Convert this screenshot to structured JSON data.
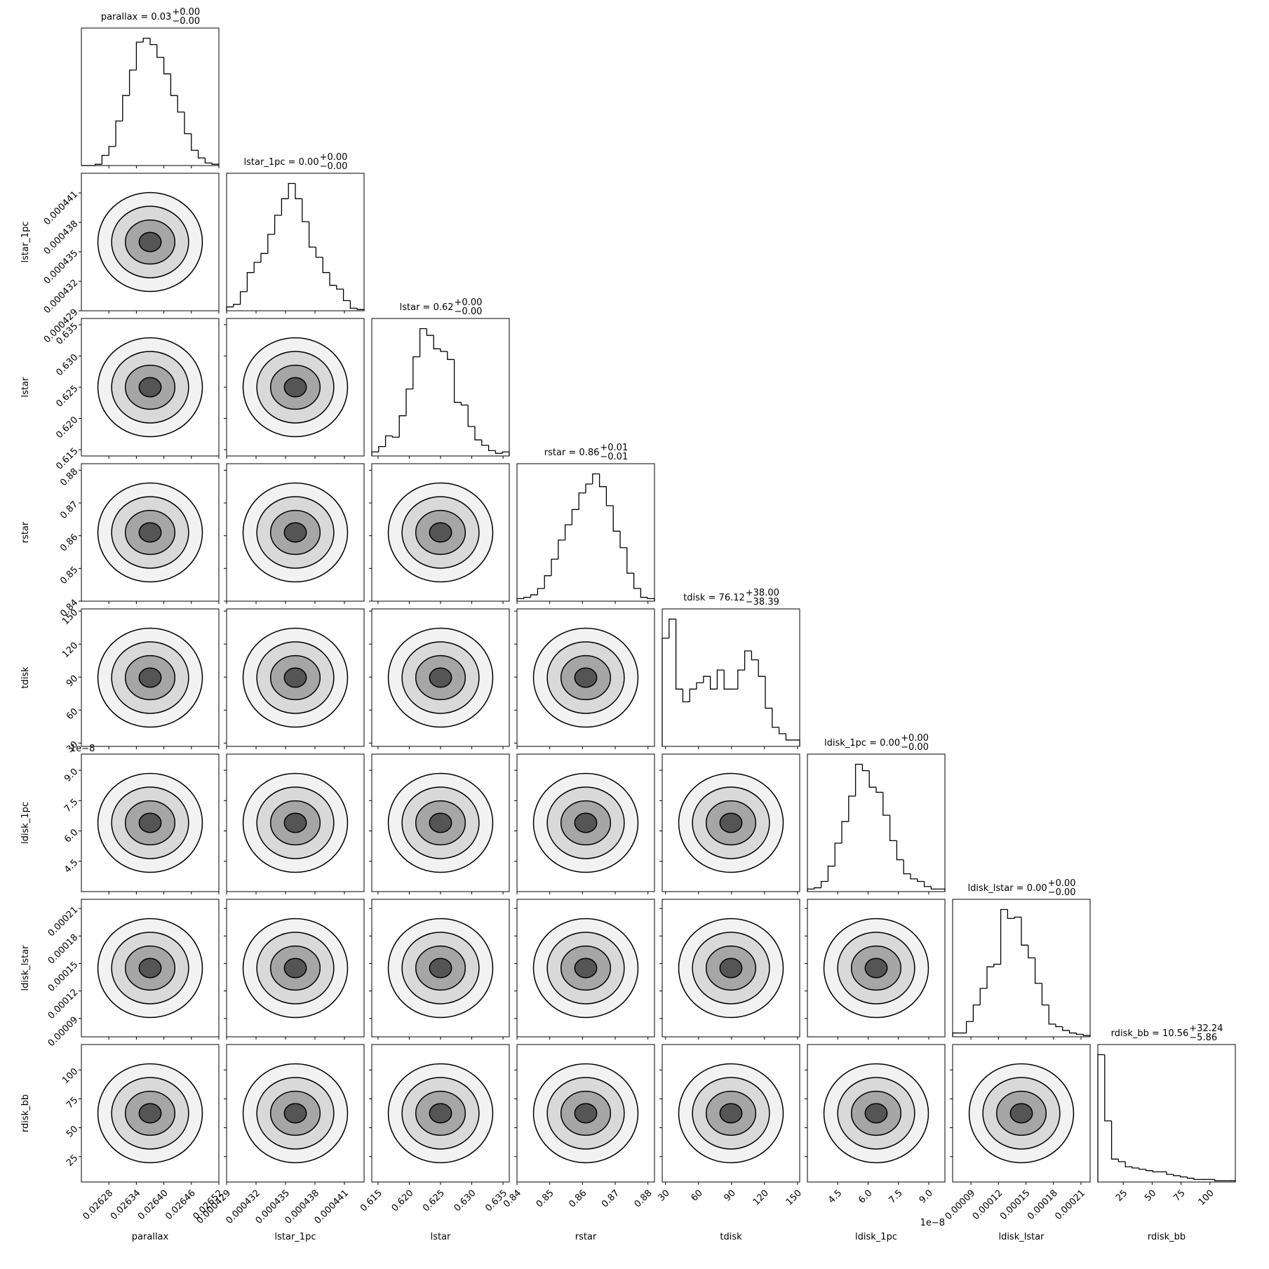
{
  "chart_data": {
    "type": "corner",
    "color": "#000000",
    "parameters": [
      {
        "label": "parallax",
        "title": "parallax = 0.03",
        "title_upper": "+0.00",
        "title_lower": "−0.00",
        "xlim": [
          0.02622,
          0.02652
        ],
        "ticks": [
          0.02628,
          0.02634,
          {
            "value": 0.0264,
            "label": "0.02640"
          },
          0.02646,
          0.02652
        ],
        "bins": [
          0.02622,
          0.026235,
          0.02625,
          0.026265,
          0.02628,
          0.026295,
          0.02631,
          0.026325,
          0.02634,
          0.026355,
          0.02637,
          0.026385,
          0.0264,
          0.026415,
          0.02643,
          0.026445,
          0.02646,
          0.026475,
          0.02649,
          0.026505,
          0.02652
        ],
        "hist": [
          0,
          0,
          1,
          8,
          15,
          35,
          55,
          75,
          97,
          100,
          95,
          85,
          72,
          55,
          42,
          25,
          12,
          6,
          2,
          1
        ]
      },
      {
        "label": "lstar_1pc",
        "title": "lstar_1pc = 0.00",
        "title_upper": "+0.00",
        "title_lower": "−0.00",
        "xlim": [
          0.000429,
          0.000443
        ],
        "ticks": [
          0.000429,
          0.000432,
          0.000435,
          0.000438,
          0.000441
        ],
        "bins": [
          0.000429,
          0.0004297,
          0.0004304,
          0.0004311,
          0.0004318,
          0.0004325,
          0.0004332,
          0.0004339,
          0.0004346,
          0.0004353,
          0.000436,
          0.0004367,
          0.0004374,
          0.0004381,
          0.0004388,
          0.0004395,
          0.0004402,
          0.0004409,
          0.0004416,
          0.0004423,
          0.000443
        ],
        "hist": [
          3,
          5,
          15,
          30,
          38,
          45,
          60,
          75,
          88,
          100,
          88,
          70,
          50,
          42,
          30,
          20,
          17,
          8,
          2,
          1
        ]
      },
      {
        "label": "lstar",
        "title": "lstar = 0.62",
        "title_upper": "+0.00",
        "title_lower": "−0.00",
        "xlim": [
          0.614,
          0.636
        ],
        "ticks": [
          0.615,
          {
            "value": 0.62,
            "label": "0.620"
          },
          0.625,
          {
            "value": 0.63,
            "label": "0.630"
          },
          0.635
        ],
        "bins": [
          0.614,
          0.6151,
          0.6162,
          0.6173,
          0.6184,
          0.6195,
          0.6206,
          0.6217,
          0.6228,
          0.6239,
          0.625,
          0.6261,
          0.6272,
          0.6283,
          0.6294,
          0.6305,
          0.6316,
          0.6327,
          0.6338,
          0.6349,
          0.636
        ],
        "hist": [
          3,
          7,
          15,
          14,
          30,
          50,
          74,
          95,
          90,
          80,
          78,
          72,
          40,
          38,
          22,
          12,
          8,
          4,
          2,
          3
        ]
      },
      {
        "label": "rstar",
        "title": "rstar = 0.86",
        "title_upper": "+0.01",
        "title_lower": "−0.01",
        "xlim": [
          0.84,
          0.882
        ],
        "ticks": [
          0.84,
          0.85,
          0.86,
          0.87,
          0.88
        ],
        "bins": [
          0.84,
          0.8421,
          0.8442,
          0.8463,
          0.8484,
          0.8505,
          0.8526,
          0.8547,
          0.8568,
          0.8589,
          0.861,
          0.8631,
          0.8652,
          0.8673,
          0.8694,
          0.8715,
          0.8736,
          0.8757,
          0.8778,
          0.8799,
          0.882
        ],
        "hist": [
          2,
          3,
          5,
          10,
          20,
          33,
          48,
          60,
          72,
          85,
          92,
          100,
          90,
          75,
          55,
          42,
          22,
          10,
          3,
          2
        ]
      },
      {
        "label": "tdisk",
        "title": "tdisk = 76.12",
        "title_upper": "+38.00",
        "title_lower": "−38.39",
        "xlim": [
          27,
          152
        ],
        "ticks": [
          30,
          60,
          90,
          120,
          150
        ],
        "bins": [
          27,
          33.25,
          39.5,
          45.75,
          52,
          58.25,
          64.5,
          70.75,
          77,
          83.25,
          89.5,
          95.75,
          102,
          108.25,
          114.5,
          120.75,
          127,
          133.25,
          139.5,
          145.75,
          152
        ],
        "hist": [
          85,
          100,
          45,
          35,
          45,
          50,
          55,
          45,
          60,
          45,
          45,
          60,
          75,
          68,
          55,
          30,
          15,
          10,
          5,
          5
        ]
      },
      {
        "label": "ldisk_1pc",
        "title": "ldisk_1pc = 0.00",
        "title_upper": "+0.00",
        "title_lower": "−0.00",
        "offset_text": "1e−8",
        "xlim": [
          3,
          9.8
        ],
        "ticks": [
          4.5,
          {
            "value": 6,
            "label": "6.0"
          },
          7.5,
          {
            "value": 9,
            "label": "9.0"
          }
        ],
        "bins": [
          3,
          3.34,
          3.68,
          4.02,
          4.36,
          4.7,
          5.04,
          5.38,
          5.72,
          6.06,
          6.4,
          6.74,
          7.08,
          7.42,
          7.76,
          8.1,
          8.44,
          8.78,
          9.12,
          9.46,
          9.8
        ],
        "hist": [
          2,
          3,
          8,
          20,
          38,
          55,
          75,
          100,
          95,
          82,
          78,
          60,
          40,
          25,
          14,
          10,
          8,
          4,
          2,
          2
        ]
      },
      {
        "label": "ldisk_lstar",
        "title": "ldisk_lstar = 0.00",
        "title_upper": "+0.00",
        "title_lower": "−0.00",
        "xlim": [
          7e-05,
          0.00022
        ],
        "ticks": [
          9e-05,
          0.00012,
          0.00015,
          0.00018,
          0.00021
        ],
        "bins": [
          7e-05,
          7.75e-05,
          8.5e-05,
          9.25e-05,
          0.0001,
          0.0001075,
          0.000115,
          0.0001225,
          0.00013,
          0.0001375,
          0.000145,
          0.0001525,
          0.00016,
          0.0001675,
          0.000175,
          0.0001825,
          0.00019,
          0.0001975,
          0.000205,
          0.0002125,
          0.00022
        ],
        "hist": [
          3,
          3,
          12,
          25,
          38,
          55,
          57,
          100,
          93,
          94,
          72,
          62,
          42,
          25,
          10,
          8,
          5,
          3,
          2,
          1
        ]
      },
      {
        "label": "rdisk_bb",
        "title": "rdisk_bb = 10.56",
        "title_upper": "+32.24",
        "title_lower": "−5.86",
        "xlim": [
          3,
          122
        ],
        "ticks": [
          25,
          50,
          75,
          100
        ],
        "bins": [
          3,
          8.95,
          14.9,
          20.85,
          26.8,
          32.75,
          38.7,
          44.65,
          50.6,
          56.55,
          62.5,
          68.45,
          74.4,
          80.35,
          86.3,
          92.25,
          98.2,
          104.15,
          110.1,
          116.05,
          122
        ],
        "hist": [
          100,
          48,
          18,
          16,
          12,
          11,
          10,
          9,
          8,
          8,
          6,
          5,
          4,
          3,
          2,
          2,
          2,
          1,
          1,
          1
        ]
      }
    ]
  }
}
